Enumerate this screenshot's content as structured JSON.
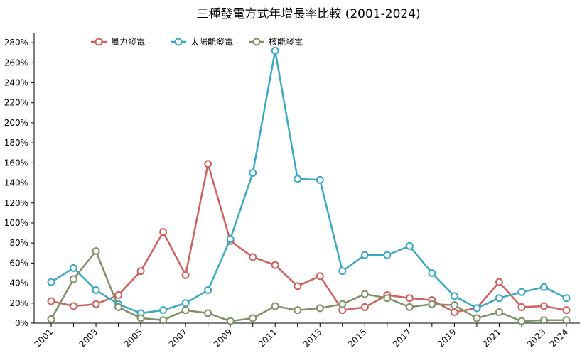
{
  "chart_data": {
    "type": "line",
    "title": "三種發電方式年增長率比較 (2001-2024)",
    "xlabel": "",
    "ylabel": "",
    "ylim": [
      0,
      2.9
    ],
    "y_tick_values": [
      0,
      0.2,
      0.4,
      0.6,
      0.8,
      1.0,
      1.2,
      1.4,
      1.6,
      1.8,
      2.0,
      2.2,
      2.4,
      2.6,
      2.8
    ],
    "y_tick_labels": [
      "0%",
      "20%",
      "40%",
      "60%",
      "80%",
      "100%",
      "120%",
      "140%",
      "160%",
      "180%",
      "200%",
      "220%",
      "240%",
      "260%",
      "280%"
    ],
    "x": [
      2001,
      2002,
      2003,
      2004,
      2005,
      2006,
      2007,
      2008,
      2009,
      2010,
      2011,
      2012,
      2013,
      2014,
      2015,
      2016,
      2017,
      2018,
      2019,
      2020,
      2021,
      2022,
      2023,
      2024
    ],
    "x_tick_labels": [
      "2001",
      "2003",
      "2005",
      "2007",
      "2009",
      "2011",
      "2013",
      "2015",
      "2017",
      "2019",
      "2021",
      "2023",
      "2024"
    ],
    "legend_position": "top-left",
    "grid": false,
    "series": [
      {
        "name": "風力發電",
        "color": "#d0605e",
        "values": [
          0.22,
          0.17,
          0.19,
          0.28,
          0.52,
          0.91,
          0.48,
          1.59,
          0.82,
          0.66,
          0.58,
          0.37,
          0.47,
          0.13,
          0.16,
          0.28,
          0.25,
          0.23,
          0.11,
          0.15,
          0.41,
          0.16,
          0.17,
          0.13
        ]
      },
      {
        "name": "太陽能發電",
        "color": "#3ca9c4",
        "values": [
          0.41,
          0.55,
          0.33,
          0.19,
          0.1,
          0.13,
          0.2,
          0.33,
          0.84,
          1.5,
          2.72,
          1.44,
          1.43,
          0.52,
          0.68,
          0.68,
          0.77,
          0.5,
          0.27,
          0.15,
          0.25,
          0.31,
          0.36,
          0.25
        ]
      },
      {
        "name": "核能發電",
        "color": "#7f9267",
        "values": [
          0.04,
          0.44,
          0.72,
          0.16,
          0.05,
          0.03,
          0.13,
          0.1,
          0.02,
          0.05,
          0.17,
          0.13,
          0.15,
          0.19,
          0.29,
          0.25,
          0.16,
          0.19,
          0.18,
          0.05,
          0.11,
          0.02,
          0.03,
          0.03
        ]
      }
    ]
  }
}
